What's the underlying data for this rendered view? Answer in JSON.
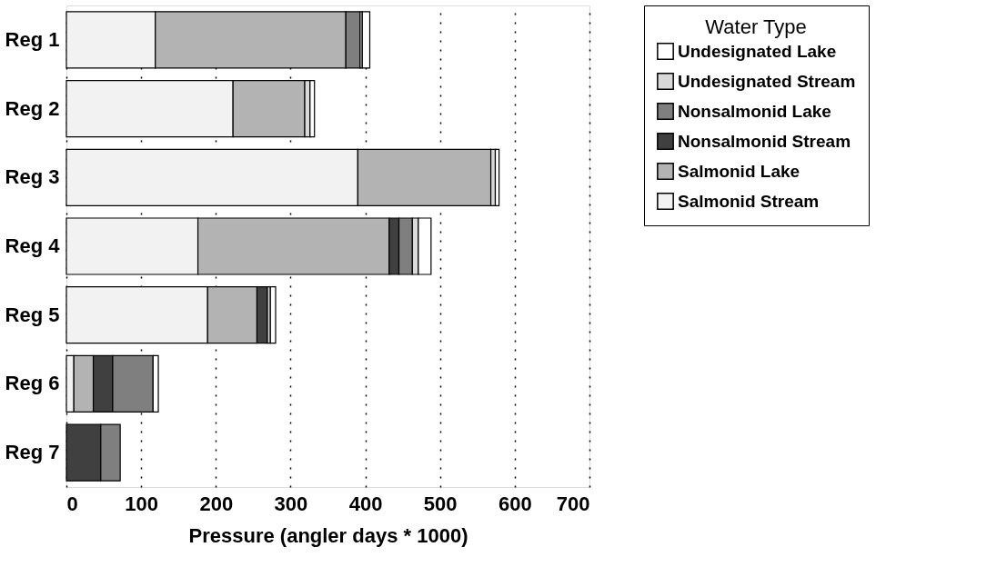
{
  "chart_data": {
    "type": "bar",
    "orientation": "horizontal",
    "stacked": true,
    "xlabel": "Pressure (angler days * 1000)",
    "legend_title": "Water Type",
    "categories": [
      "Reg 1",
      "Reg 2",
      "Reg 3",
      "Reg 4",
      "Reg 5",
      "Reg 6",
      "Reg 7"
    ],
    "series": [
      {
        "name": "Salmonid Stream",
        "color": "#f2f2f2",
        "values": [
          119,
          223,
          390,
          176,
          189,
          10,
          null
        ]
      },
      {
        "name": "Salmonid Lake",
        "color": "#b3b3b3",
        "values": [
          255,
          96,
          178,
          256,
          66,
          26,
          null
        ]
      },
      {
        "name": "Nonsalmonid Stream",
        "color": "#404040",
        "values": [
          null,
          null,
          null,
          13,
          14,
          26,
          46
        ]
      },
      {
        "name": "Nonsalmonid Lake",
        "color": "#7f7f7f",
        "values": [
          19,
          null,
          null,
          18,
          null,
          54,
          26
        ]
      },
      {
        "name": "Undesignated Stream",
        "color": "#d9d9d9",
        "values": [
          3,
          7,
          6,
          8,
          4,
          null,
          null
        ]
      },
      {
        "name": "Undesignated Lake",
        "color": "#ffffff",
        "values": [
          10,
          6,
          5,
          17,
          7,
          7,
          null
        ]
      }
    ],
    "xlim": [
      0,
      700
    ],
    "xticks": [
      0,
      100,
      200,
      300,
      400,
      500,
      600,
      700
    ],
    "grid": "x",
    "legend": "right"
  }
}
